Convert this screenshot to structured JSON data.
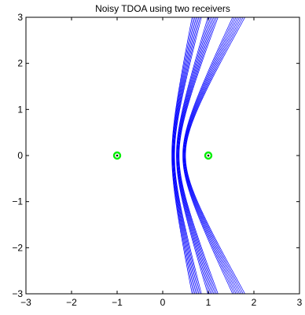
{
  "chart_data": {
    "type": "line",
    "title": "Noisy TDOA using two receivers",
    "xlabel": "",
    "ylabel": "",
    "xlim": [
      -3,
      3
    ],
    "ylim": [
      -3,
      3
    ],
    "xticks": [
      -3,
      -2,
      -1,
      0,
      1,
      2,
      3
    ],
    "yticks": [
      -3,
      -2,
      -1,
      0,
      1,
      2,
      3
    ],
    "xtick_labels": [
      "−3",
      "−2",
      "−1",
      "0",
      "1",
      "2",
      "3"
    ],
    "ytick_labels": [
      "−3",
      "−2",
      "−1",
      "0",
      "1",
      "2",
      "3"
    ],
    "grid": false,
    "legend": null,
    "receivers": [
      {
        "x": -1,
        "y": 0
      },
      {
        "x": 1,
        "y": 0
      }
    ],
    "hyperbola_bands": [
      {
        "name": "",
        "vertex_offsets": [
          0.2,
          0.26
        ],
        "focal_distance": 1,
        "y_range": [
          -3,
          3
        ]
      },
      {
        "name": "",
        "vertex_offsets": [
          0.3,
          0.36
        ],
        "focal_distance": 1,
        "y_range": [
          -3,
          3
        ]
      },
      {
        "name": "",
        "vertex_offsets": [
          0.44,
          0.5
        ],
        "focal_distance": 1,
        "y_range": [
          -3,
          3
        ]
      }
    ],
    "colors": {
      "curves": "#0000ff",
      "receiver_ring": "#00ee00",
      "receiver_center": "#000000",
      "axes": "#000000"
    }
  }
}
